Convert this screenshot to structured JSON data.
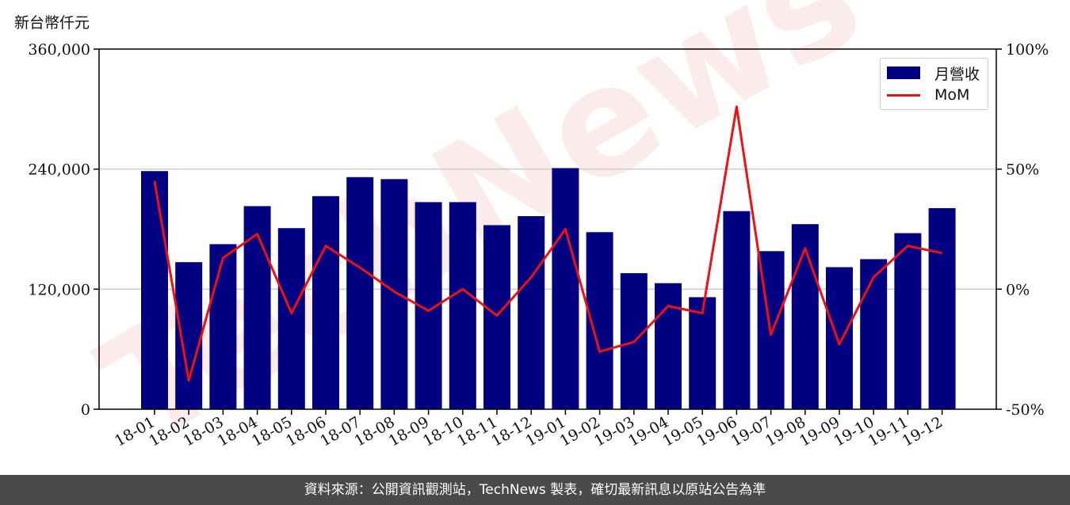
{
  "unit_label": "新台幣仟元",
  "footer_text": "資料來源：公開資訊觀測站，TechNews 製表，確切最新訊息以原站公告為準",
  "watermark": "TechNews",
  "colors": {
    "bar": "#000080",
    "line": "#ee1111",
    "footer_bg": "#4a4a4a"
  },
  "chart_data": {
    "type": "bar",
    "categories": [
      "18-01",
      "18-02",
      "18-03",
      "18-04",
      "18-05",
      "18-06",
      "18-07",
      "18-08",
      "18-09",
      "18-10",
      "18-11",
      "18-12",
      "19-01",
      "19-02",
      "19-03",
      "19-04",
      "19-05",
      "19-06",
      "19-07",
      "19-08",
      "19-09",
      "19-10",
      "19-11",
      "19-12"
    ],
    "series": [
      {
        "name": "月營收",
        "type": "bar",
        "axis": "left",
        "values": [
          238000,
          147000,
          165000,
          203000,
          181000,
          213000,
          232000,
          230000,
          207000,
          207000,
          184000,
          193000,
          241000,
          177000,
          136000,
          126000,
          112000,
          198000,
          158000,
          185000,
          142000,
          150000,
          176000,
          201000
        ]
      },
      {
        "name": "MoM",
        "type": "line",
        "axis": "right",
        "values": [
          45,
          -38,
          13,
          23,
          -10,
          18,
          9,
          -1,
          -9,
          0,
          -11,
          5,
          25,
          -26,
          -22,
          -7,
          -10,
          76,
          -19,
          17,
          -23,
          5,
          18,
          15
        ]
      }
    ],
    "y_left": {
      "ylim": [
        0,
        360000
      ],
      "ticks": [
        "0",
        "120,000",
        "240,000",
        "360,000"
      ],
      "tick_values": [
        0,
        120000,
        240000,
        360000
      ]
    },
    "y_right": {
      "ylim": [
        -50,
        100
      ],
      "ticks": [
        "-50%",
        "0%",
        "50%",
        "100%"
      ],
      "tick_values": [
        -50,
        0,
        50,
        100
      ]
    },
    "grid": "horizontal",
    "legend_position": "top-right"
  }
}
